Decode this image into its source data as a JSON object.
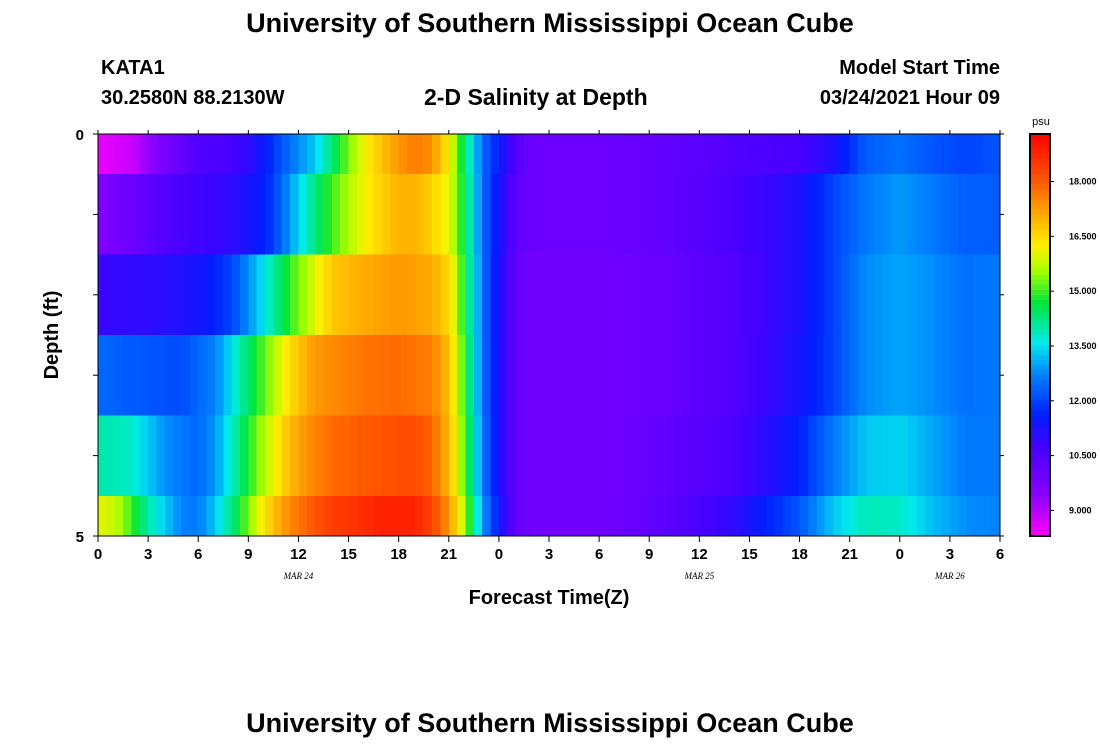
{
  "header": {
    "title": "University of Southern Mississippi Ocean Cube",
    "footer_title": "University of Southern Mississippi Ocean Cube",
    "station": "KATA1",
    "coords": "30.2580N 88.2130W",
    "subtitle": "2-D Salinity at Depth",
    "model_label": "Model Start Time",
    "model_time": "03/24/2021 Hour 09"
  },
  "chart_data": {
    "type": "heatmap",
    "title": "2-D Salinity at Depth",
    "xlabel": "Forecast Time(Z)",
    "ylabel": "Depth (ft)",
    "x_start_hour": 0,
    "x_end_hour": 54,
    "x_tick_labels": [
      "0",
      "3",
      "6",
      "9",
      "12",
      "15",
      "18",
      "21",
      "0",
      "3",
      "6",
      "9",
      "12",
      "15",
      "18",
      "21",
      "0",
      "3",
      "6"
    ],
    "date_labels": [
      {
        "text": "MAR 24",
        "hour": 12
      },
      {
        "text": "MAR 25",
        "hour": 36
      },
      {
        "text": "MAR 26",
        "hour": 51
      }
    ],
    "y_tick_labels": [
      "0",
      "5"
    ],
    "ylim": [
      0,
      5
    ],
    "colorbar": {
      "unit": "psu",
      "min": 8.3,
      "max": 19.3,
      "tick_labels": [
        "9.000",
        "10.500",
        "12.000",
        "13.500",
        "15.000",
        "16.500",
        "18.000"
      ],
      "tick_values": [
        9.0,
        10.5,
        12.0,
        13.5,
        15.0,
        16.5,
        18.0
      ]
    },
    "rows": [
      {
        "depth_range": [
          0.0,
          0.5
        ],
        "profile": [
          [
            0,
            8.5
          ],
          [
            2,
            8.8
          ],
          [
            4,
            9.8
          ],
          [
            6,
            10.5
          ],
          [
            8,
            10.7
          ],
          [
            9,
            11.0
          ],
          [
            10,
            11.5
          ],
          [
            11,
            12.2
          ],
          [
            12,
            12.8
          ],
          [
            13,
            13.3
          ],
          [
            14,
            14.3
          ],
          [
            15,
            15.3
          ],
          [
            16,
            16.2
          ],
          [
            17,
            16.8
          ],
          [
            18,
            17.3
          ],
          [
            19,
            17.6
          ],
          [
            20,
            17.4
          ],
          [
            21,
            16.2
          ],
          [
            22,
            14.3
          ],
          [
            23,
            12.5
          ],
          [
            24,
            11.5
          ],
          [
            25,
            10.5
          ],
          [
            26,
            10.0
          ],
          [
            30,
            10.0
          ],
          [
            34,
            10.2
          ],
          [
            38,
            10.5
          ],
          [
            42,
            10.7
          ],
          [
            44,
            11.2
          ],
          [
            46,
            12.3
          ],
          [
            48,
            12.5
          ],
          [
            50,
            12.2
          ],
          [
            52,
            12.0
          ],
          [
            54,
            12.2
          ]
        ]
      },
      {
        "depth_range": [
          0.5,
          1.5
        ],
        "profile": [
          [
            0,
            9.6
          ],
          [
            2,
            10.0
          ],
          [
            4,
            10.5
          ],
          [
            6,
            10.8
          ],
          [
            8,
            11.0
          ],
          [
            10,
            11.6
          ],
          [
            11,
            12.4
          ],
          [
            12,
            13.4
          ],
          [
            13,
            14.3
          ],
          [
            14,
            15.0
          ],
          [
            15,
            15.6
          ],
          [
            16,
            16.2
          ],
          [
            17,
            16.6
          ],
          [
            18,
            17.0
          ],
          [
            19,
            17.0
          ],
          [
            20,
            16.6
          ],
          [
            21,
            16.0
          ],
          [
            22,
            14.5
          ],
          [
            23,
            12.5
          ],
          [
            24,
            11.3
          ],
          [
            25,
            10.3
          ],
          [
            26,
            10.0
          ],
          [
            30,
            10.0
          ],
          [
            34,
            10.2
          ],
          [
            38,
            10.6
          ],
          [
            42,
            11.2
          ],
          [
            44,
            12.0
          ],
          [
            46,
            12.6
          ],
          [
            48,
            12.9
          ],
          [
            50,
            12.6
          ],
          [
            52,
            12.3
          ],
          [
            54,
            12.3
          ]
        ]
      },
      {
        "depth_range": [
          1.5,
          2.5
        ],
        "profile": [
          [
            0,
            10.9
          ],
          [
            3,
            11.0
          ],
          [
            6,
            11.3
          ],
          [
            8,
            12.0
          ],
          [
            9,
            12.8
          ],
          [
            10,
            13.6
          ],
          [
            11,
            14.5
          ],
          [
            12,
            15.3
          ],
          [
            13,
            16.0
          ],
          [
            14,
            16.7
          ],
          [
            16,
            17.1
          ],
          [
            18,
            17.3
          ],
          [
            20,
            17.1
          ],
          [
            21,
            16.5
          ],
          [
            22,
            14.6
          ],
          [
            23,
            12.6
          ],
          [
            24,
            11.2
          ],
          [
            25,
            10.2
          ],
          [
            26,
            9.9
          ],
          [
            30,
            9.9
          ],
          [
            34,
            10.1
          ],
          [
            38,
            10.5
          ],
          [
            42,
            11.2
          ],
          [
            44,
            12.0
          ],
          [
            46,
            12.8
          ],
          [
            48,
            13.0
          ],
          [
            50,
            12.8
          ],
          [
            52,
            12.5
          ],
          [
            54,
            12.6
          ]
        ]
      },
      {
        "depth_range": [
          2.5,
          3.5
        ],
        "profile": [
          [
            0,
            12.4
          ],
          [
            3,
            12.2
          ],
          [
            5,
            12.1
          ],
          [
            7,
            12.7
          ],
          [
            8,
            13.5
          ],
          [
            9,
            14.4
          ],
          [
            10,
            15.2
          ],
          [
            11,
            16.0
          ],
          [
            12,
            16.8
          ],
          [
            13,
            17.3
          ],
          [
            16,
            17.7
          ],
          [
            18,
            17.8
          ],
          [
            20,
            17.6
          ],
          [
            21,
            16.8
          ],
          [
            22,
            14.8
          ],
          [
            23,
            12.6
          ],
          [
            24,
            11.2
          ],
          [
            25,
            10.2
          ],
          [
            26,
            9.9
          ],
          [
            30,
            9.9
          ],
          [
            34,
            10.1
          ],
          [
            38,
            10.5
          ],
          [
            42,
            11.3
          ],
          [
            44,
            12.0
          ],
          [
            46,
            12.8
          ],
          [
            48,
            13.0
          ],
          [
            50,
            12.8
          ],
          [
            52,
            12.5
          ],
          [
            54,
            12.6
          ]
        ]
      },
      {
        "depth_range": [
          3.5,
          4.5
        ],
        "profile": [
          [
            0,
            14.0
          ],
          [
            2,
            13.8
          ],
          [
            3,
            13.3
          ],
          [
            4,
            12.8
          ],
          [
            6,
            12.4
          ],
          [
            7,
            12.9
          ],
          [
            8,
            13.8
          ],
          [
            9,
            14.8
          ],
          [
            10,
            15.7
          ],
          [
            11,
            16.5
          ],
          [
            12,
            17.2
          ],
          [
            14,
            17.8
          ],
          [
            17,
            18.1
          ],
          [
            19,
            18.2
          ],
          [
            20,
            17.9
          ],
          [
            21,
            16.9
          ],
          [
            22,
            15.0
          ],
          [
            23,
            12.7
          ],
          [
            24,
            11.2
          ],
          [
            25,
            10.2
          ],
          [
            26,
            9.9
          ],
          [
            30,
            9.9
          ],
          [
            34,
            10.2
          ],
          [
            38,
            10.6
          ],
          [
            42,
            11.6
          ],
          [
            44,
            12.6
          ],
          [
            46,
            13.3
          ],
          [
            48,
            13.4
          ],
          [
            50,
            13.0
          ],
          [
            52,
            12.6
          ],
          [
            54,
            12.6
          ]
        ]
      },
      {
        "depth_range": [
          4.5,
          5.0
        ],
        "profile": [
          [
            0,
            16.0
          ],
          [
            1,
            15.8
          ],
          [
            2,
            15.0
          ],
          [
            3,
            14.0
          ],
          [
            4,
            13.3
          ],
          [
            5,
            12.7
          ],
          [
            6,
            12.6
          ],
          [
            7,
            13.3
          ],
          [
            8,
            14.2
          ],
          [
            9,
            15.3
          ],
          [
            10,
            16.4
          ],
          [
            11,
            17.2
          ],
          [
            12,
            17.7
          ],
          [
            14,
            18.4
          ],
          [
            17,
            18.8
          ],
          [
            19,
            18.8
          ],
          [
            20,
            18.3
          ],
          [
            21,
            17.3
          ],
          [
            22,
            15.5
          ],
          [
            23,
            13.0
          ],
          [
            24,
            11.4
          ],
          [
            25,
            10.2
          ],
          [
            26,
            9.9
          ],
          [
            30,
            9.9
          ],
          [
            34,
            10.3
          ],
          [
            38,
            11.0
          ],
          [
            42,
            12.2
          ],
          [
            44,
            13.3
          ],
          [
            46,
            13.9
          ],
          [
            48,
            13.8
          ],
          [
            50,
            13.2
          ],
          [
            52,
            12.8
          ],
          [
            54,
            12.7
          ]
        ]
      }
    ]
  }
}
